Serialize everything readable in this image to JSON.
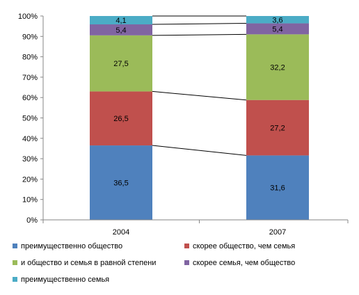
{
  "chart_data": {
    "type": "bar",
    "stacked": true,
    "percent": true,
    "categories": [
      "2004",
      "2007"
    ],
    "series": [
      {
        "name": "преимущественно общество",
        "color": "#4F81BD",
        "values": [
          36.5,
          31.6
        ],
        "labels": [
          "36,5",
          "31,6"
        ]
      },
      {
        "name": "скорее общество, чем семья",
        "color": "#C0504D",
        "values": [
          26.5,
          27.2
        ],
        "labels": [
          "26,5",
          "27,2"
        ]
      },
      {
        "name": "и общество и семья в равной степени",
        "color": "#9BBB59",
        "values": [
          27.5,
          32.2
        ],
        "labels": [
          "27,5",
          "32,2"
        ]
      },
      {
        "name": "скорее семья, чем общество",
        "color": "#8064A2",
        "values": [
          5.4,
          5.4
        ],
        "labels": [
          "5,4",
          "5,4"
        ]
      },
      {
        "name": "преимущественно семья",
        "color": "#4BACC6",
        "values": [
          4.1,
          3.6
        ],
        "labels": [
          "4,1",
          "3,6"
        ]
      }
    ],
    "y_ticks": [
      "0%",
      "10%",
      "20%",
      "30%",
      "40%",
      "50%",
      "60%",
      "70%",
      "80%",
      "90%",
      "100%"
    ],
    "ylim": [
      0,
      100
    ],
    "series_lines": true,
    "grid": false,
    "legend_position": "bottom"
  }
}
